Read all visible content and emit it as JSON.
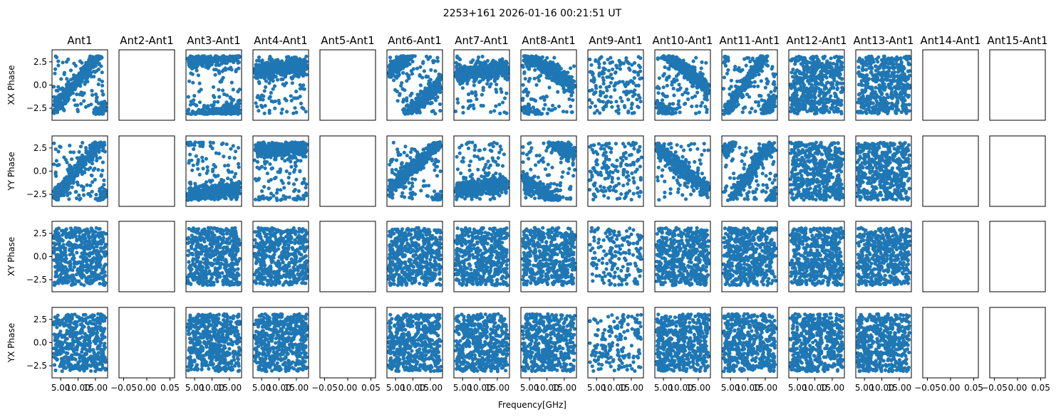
{
  "chart_data": {
    "type": "scatter",
    "title": "2253+161 2026-01-16 00:21:51 UT",
    "xlabel": "Frequency[GHz]",
    "columns": [
      "Ant1",
      "Ant2-Ant1",
      "Ant3-Ant1",
      "Ant4-Ant1",
      "Ant5-Ant1",
      "Ant6-Ant1",
      "Ant7-Ant1",
      "Ant8-Ant1",
      "Ant9-Ant1",
      "Ant10-Ant1",
      "Ant11-Ant1",
      "Ant12-Ant1",
      "Ant13-Ant1",
      "Ant14-Ant1",
      "Ant15-Ant1"
    ],
    "rows": [
      "XX Phase",
      "YY Phase",
      "XY Phase",
      "YX Phase"
    ],
    "ylim": [
      -3.8,
      3.8
    ],
    "yticks": [
      "2.5",
      "0.0",
      "−2.5"
    ],
    "ytick_values": [
      2.5,
      0.0,
      -2.5
    ],
    "xlim_data": [
      2.5,
      18.5
    ],
    "xlim_empty": [
      -0.06,
      0.06
    ],
    "xticks_data": [
      "5.00",
      "10.00",
      "15.00"
    ],
    "xtick_values_data": [
      5,
      10,
      15
    ],
    "xticks_empty": [
      "−0.05",
      "0.00",
      "0.05"
    ],
    "xtick_values_empty": [
      -0.05,
      0.0,
      0.05
    ],
    "empty_columns": [
      1,
      4,
      13,
      14
    ],
    "sparse_columns": [
      8
    ],
    "point_color": "#1f77b4"
  }
}
